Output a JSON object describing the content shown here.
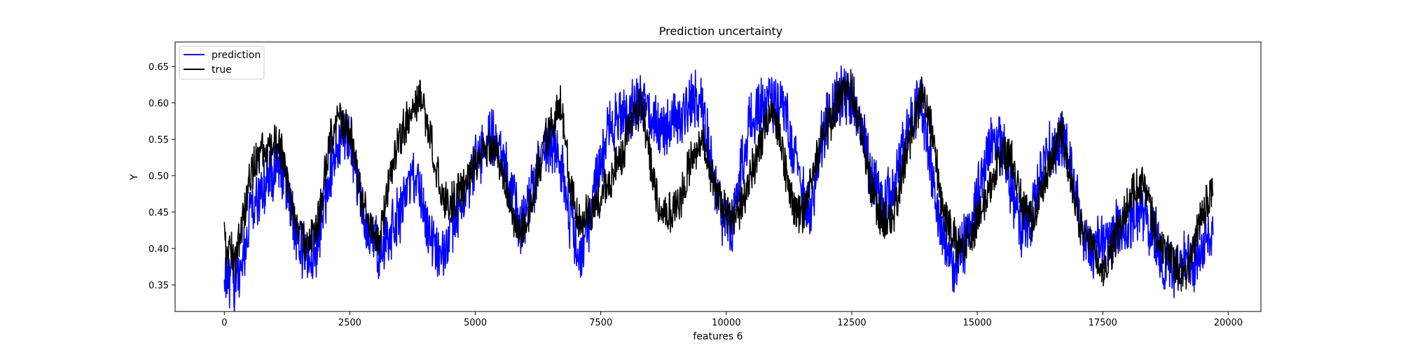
{
  "chart_data": {
    "type": "line",
    "title": "Prediction uncertainty",
    "xlabel": "features 6",
    "ylabel": "Y",
    "xlim": [
      -980,
      20650
    ],
    "ylim": [
      0.3135,
      0.6835
    ],
    "xticks": [
      0,
      2500,
      5000,
      7500,
      10000,
      12500,
      15000,
      17500,
      20000
    ],
    "xtick_labels": [
      "0",
      "2500",
      "5000",
      "7500",
      "10000",
      "12500",
      "15000",
      "17500",
      "20000"
    ],
    "yticks": [
      0.35,
      0.4,
      0.45,
      0.5,
      0.55,
      0.6,
      0.65
    ],
    "ytick_labels": [
      "0.35",
      "0.40",
      "0.45",
      "0.50",
      "0.55",
      "0.60",
      "0.65"
    ],
    "grid": false,
    "legend_position": "upper-left",
    "series": [
      {
        "name": "prediction",
        "color": "#0000ff",
        "noise": 0.036,
        "x": [
          0,
          100,
          200,
          300,
          400,
          500,
          700,
          900,
          1100,
          1300,
          1500,
          1700,
          1900,
          2100,
          2300,
          2500,
          2700,
          2900,
          3100,
          3300,
          3500,
          3700,
          3900,
          4100,
          4300,
          4500,
          4700,
          4900,
          5100,
          5300,
          5500,
          5700,
          5900,
          6100,
          6300,
          6500,
          6700,
          6900,
          7100,
          7300,
          7500,
          7700,
          7900,
          8100,
          8300,
          8500,
          8700,
          8900,
          9100,
          9300,
          9500,
          9700,
          9900,
          10100,
          10300,
          10500,
          10700,
          10900,
          11100,
          11300,
          11500,
          11700,
          11900,
          12100,
          12300,
          12500,
          12700,
          12900,
          13100,
          13300,
          13500,
          13700,
          13900,
          14100,
          14300,
          14500,
          14700,
          14900,
          15100,
          15300,
          15500,
          15700,
          15900,
          16100,
          16300,
          16500,
          16700,
          16900,
          17100,
          17300,
          17500,
          17700,
          17900,
          18100,
          18300,
          18500,
          18700,
          18900,
          19100,
          19300,
          19500,
          19700
        ],
        "y": [
          0.37,
          0.36,
          0.35,
          0.36,
          0.4,
          0.45,
          0.47,
          0.5,
          0.52,
          0.46,
          0.4,
          0.38,
          0.42,
          0.5,
          0.55,
          0.55,
          0.47,
          0.42,
          0.39,
          0.42,
          0.45,
          0.5,
          0.48,
          0.42,
          0.38,
          0.42,
          0.46,
          0.5,
          0.53,
          0.55,
          0.53,
          0.48,
          0.43,
          0.47,
          0.52,
          0.55,
          0.52,
          0.43,
          0.4,
          0.45,
          0.52,
          0.57,
          0.58,
          0.59,
          0.6,
          0.58,
          0.56,
          0.57,
          0.58,
          0.6,
          0.6,
          0.52,
          0.45,
          0.42,
          0.52,
          0.58,
          0.59,
          0.6,
          0.6,
          0.55,
          0.48,
          0.45,
          0.55,
          0.6,
          0.61,
          0.6,
          0.56,
          0.5,
          0.46,
          0.48,
          0.53,
          0.58,
          0.6,
          0.5,
          0.42,
          0.38,
          0.4,
          0.44,
          0.5,
          0.55,
          0.54,
          0.48,
          0.42,
          0.45,
          0.52,
          0.54,
          0.55,
          0.5,
          0.42,
          0.4,
          0.41,
          0.42,
          0.43,
          0.44,
          0.45,
          0.42,
          0.38,
          0.37,
          0.39,
          0.38,
          0.4,
          0.44
        ]
      },
      {
        "name": "true",
        "color": "#000000",
        "noise": 0.026,
        "x": [
          0,
          100,
          200,
          300,
          400,
          500,
          700,
          900,
          1100,
          1300,
          1500,
          1700,
          1900,
          2100,
          2300,
          2500,
          2700,
          2900,
          3100,
          3300,
          3500,
          3700,
          3900,
          4100,
          4300,
          4500,
          4700,
          4900,
          5100,
          5300,
          5500,
          5700,
          5900,
          6100,
          6300,
          6500,
          6700,
          6900,
          7100,
          7300,
          7500,
          7700,
          7900,
          8100,
          8300,
          8500,
          8700,
          8900,
          9100,
          9300,
          9500,
          9700,
          9900,
          10100,
          10300,
          10500,
          10700,
          10900,
          11100,
          11300,
          11500,
          11700,
          11900,
          12100,
          12300,
          12500,
          12700,
          12900,
          13100,
          13300,
          13500,
          13700,
          13900,
          14100,
          14300,
          14500,
          14700,
          14900,
          15100,
          15300,
          15500,
          15700,
          15900,
          16100,
          16300,
          16500,
          16700,
          16900,
          17100,
          17300,
          17500,
          17700,
          17900,
          18100,
          18300,
          18500,
          18700,
          18900,
          19100,
          19300,
          19500,
          19700
        ],
        "y": [
          0.41,
          0.4,
          0.38,
          0.41,
          0.45,
          0.5,
          0.53,
          0.54,
          0.55,
          0.47,
          0.42,
          0.4,
          0.45,
          0.55,
          0.58,
          0.56,
          0.48,
          0.43,
          0.41,
          0.5,
          0.55,
          0.58,
          0.61,
          0.56,
          0.48,
          0.46,
          0.48,
          0.5,
          0.53,
          0.55,
          0.52,
          0.45,
          0.42,
          0.46,
          0.52,
          0.57,
          0.6,
          0.48,
          0.43,
          0.45,
          0.47,
          0.5,
          0.52,
          0.57,
          0.6,
          0.52,
          0.44,
          0.45,
          0.47,
          0.52,
          0.56,
          0.5,
          0.46,
          0.44,
          0.46,
          0.5,
          0.55,
          0.59,
          0.54,
          0.46,
          0.44,
          0.5,
          0.55,
          0.58,
          0.62,
          0.62,
          0.56,
          0.48,
          0.44,
          0.44,
          0.5,
          0.56,
          0.62,
          0.56,
          0.46,
          0.42,
          0.4,
          0.42,
          0.46,
          0.5,
          0.53,
          0.52,
          0.46,
          0.44,
          0.48,
          0.53,
          0.56,
          0.48,
          0.42,
          0.4,
          0.37,
          0.4,
          0.44,
          0.48,
          0.49,
          0.44,
          0.4,
          0.38,
          0.36,
          0.4,
          0.45,
          0.48
        ]
      }
    ]
  }
}
